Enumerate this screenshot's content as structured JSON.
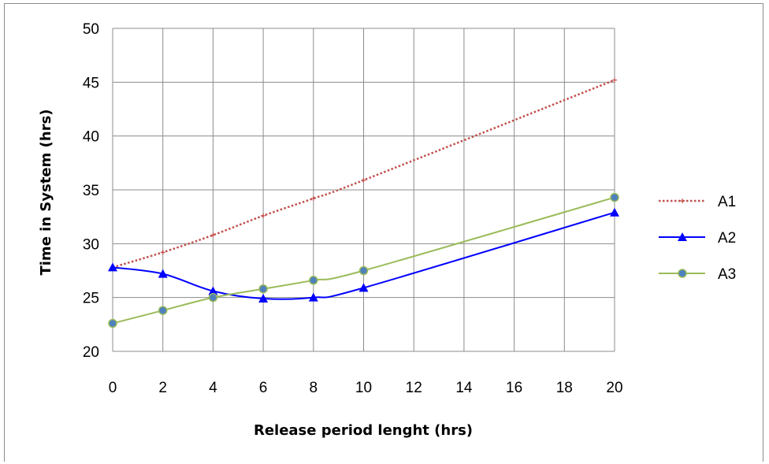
{
  "chart_data": {
    "type": "line",
    "title": "",
    "xlabel": "Release period lenght (hrs)",
    "ylabel": "Time in System (hrs)",
    "x_ticks": [
      "0",
      "2",
      "4",
      "6",
      "8",
      "10",
      "12",
      "14",
      "16",
      "18",
      "20"
    ],
    "y_ticks": [
      "20",
      "25",
      "30",
      "35",
      "40",
      "45",
      "50"
    ],
    "xlim": [
      0,
      20
    ],
    "ylim": [
      20,
      50
    ],
    "grid": true,
    "legend_position": "right",
    "series": [
      {
        "name": "A1",
        "color": "#c0504d",
        "style": "dotted",
        "marker": "plus",
        "x": [
          0,
          2,
          4,
          6,
          8,
          10,
          20
        ],
        "y": [
          27.8,
          29.2,
          30.8,
          32.6,
          34.2,
          35.9,
          45.2
        ]
      },
      {
        "name": "A2",
        "color": "#0000ff",
        "style": "solid",
        "marker": "triangle",
        "x": [
          0,
          2,
          4,
          6,
          8,
          10,
          20
        ],
        "y": [
          27.8,
          27.2,
          25.6,
          24.9,
          25.0,
          25.9,
          32.9
        ]
      },
      {
        "name": "A3",
        "color": "#9bbb59",
        "style": "solid",
        "marker": "circle",
        "x": [
          0,
          2,
          4,
          6,
          8,
          10,
          20
        ],
        "y": [
          22.6,
          23.8,
          25.0,
          25.8,
          26.6,
          27.5,
          34.3
        ]
      }
    ]
  }
}
